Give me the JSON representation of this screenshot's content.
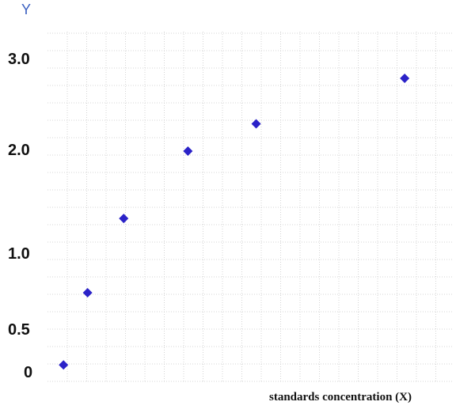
{
  "chart_data": {
    "type": "scatter",
    "title": "",
    "xlabel": "standards concentration (X)",
    "ylabel": "Y",
    "y_ticks": [
      {
        "value": 0,
        "label": "0"
      },
      {
        "value": 0.5,
        "label": "0.5"
      },
      {
        "value": 1.0,
        "label": "1.0"
      },
      {
        "value": 2.0,
        "label": "2.0"
      },
      {
        "value": 3.0,
        "label": "3.0"
      }
    ],
    "ylim": [
      -0.1,
      3.5
    ],
    "xlim": [
      0,
      10
    ],
    "grid": true,
    "marker": "diamond",
    "marker_color": "#2b22c8",
    "points": [
      {
        "x": 0.3,
        "y": 0.1
      },
      {
        "x": 0.9,
        "y": 0.75
      },
      {
        "x": 1.8,
        "y": 1.35
      },
      {
        "x": 3.4,
        "y": 2.0
      },
      {
        "x": 5.1,
        "y": 2.3
      },
      {
        "x": 8.8,
        "y": 2.8
      }
    ]
  }
}
